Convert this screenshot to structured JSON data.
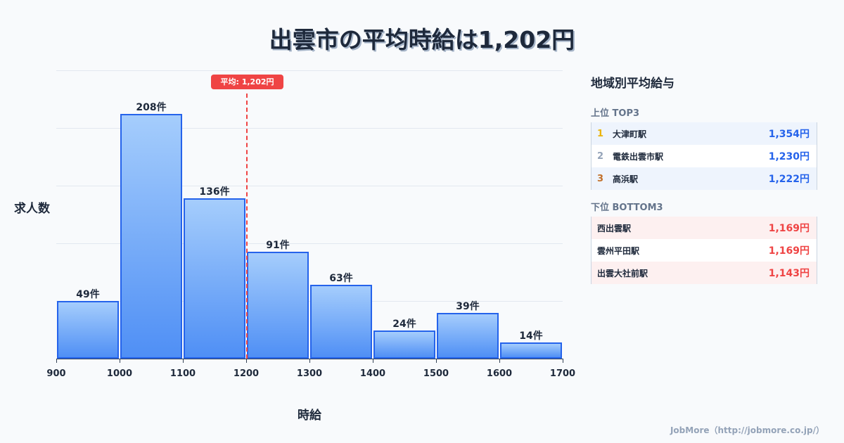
{
  "title": "出雲市の平均時給は1,202円",
  "chart_data": {
    "type": "bar",
    "title": "出雲市の平均時給は1,202円",
    "xlabel": "時給",
    "ylabel": "求人数",
    "categories": [
      "900-1000",
      "1000-1100",
      "1100-1200",
      "1200-1300",
      "1300-1400",
      "1400-1500",
      "1500-1600",
      "1600-1700"
    ],
    "bin_edges": [
      900,
      1000,
      1100,
      1200,
      1300,
      1400,
      1500,
      1600,
      1700
    ],
    "values": [
      49,
      208,
      136,
      91,
      63,
      24,
      39,
      14
    ],
    "value_labels": [
      "49件",
      "208件",
      "136件",
      "91件",
      "63件",
      "24件",
      "39件",
      "14件"
    ],
    "xticks": [
      "900",
      "1000",
      "1100",
      "1200",
      "1300",
      "1400",
      "1500",
      "1600",
      "1700"
    ],
    "xlim": [
      900,
      1700
    ],
    "ylim": [
      0,
      245
    ],
    "grid": true,
    "annotations": [
      {
        "type": "vline",
        "x": 1202,
        "label": "平均: 1,202円",
        "color": "#ef4444",
        "style": "dashed"
      }
    ],
    "bar_color": "#60a5fa",
    "bar_edge_color": "#2563eb"
  },
  "axis": {
    "ylabel": "求人数",
    "xlabel": "時給",
    "mean_label": "平均: 1,202円"
  },
  "sidebar": {
    "title": "地域別平均給与",
    "top_title": "上位 TOP3",
    "top": [
      {
        "rank": "1",
        "name": "大津町駅",
        "value": "1,354円",
        "rank_color": "#eab308"
      },
      {
        "rank": "2",
        "name": "電鉄出雲市駅",
        "value": "1,230円",
        "rank_color": "#94a3b8"
      },
      {
        "rank": "3",
        "name": "高浜駅",
        "value": "1,222円",
        "rank_color": "#c2702a"
      }
    ],
    "bottom_title": "下位 BOTTOM3",
    "bottom": [
      {
        "name": "西出雲駅",
        "value": "1,169円"
      },
      {
        "name": "雲州平田駅",
        "value": "1,169円"
      },
      {
        "name": "出雲大社前駅",
        "value": "1,143円"
      }
    ]
  },
  "footer": "JobMore（http://jobmore.co.jp/）"
}
